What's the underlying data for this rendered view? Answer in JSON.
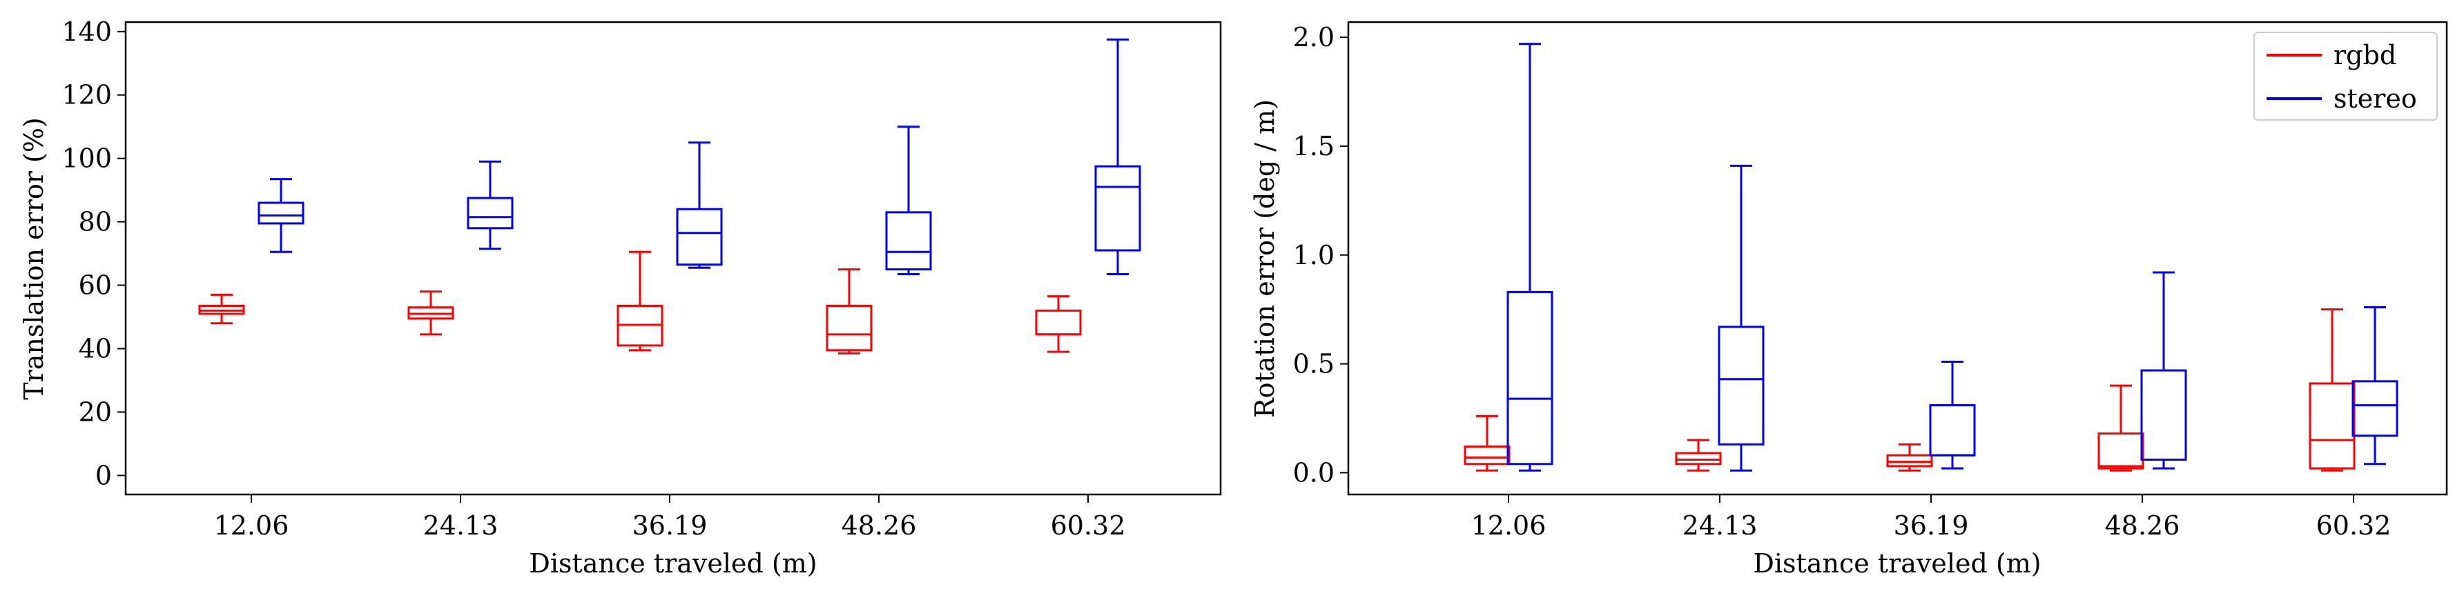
{
  "colors": {
    "rgbd": "#ff0000",
    "stereo": "#0000ff",
    "axes": "#000000",
    "background": "#ffffff"
  },
  "legend": {
    "placement": "top-right",
    "entries": [
      "rgbd",
      "stereo"
    ]
  },
  "chart_data": [
    {
      "type": "box",
      "title": "",
      "xlabel": "Distance traveled (m)",
      "ylabel": "Translation error (%)",
      "categories": [
        "12.06",
        "24.13",
        "36.19",
        "48.26",
        "60.32"
      ],
      "ylim": [
        -6,
        143
      ],
      "yticks": [
        0,
        20,
        40,
        60,
        80,
        100,
        120,
        140
      ],
      "ytick_labels": [
        "0",
        "20",
        "40",
        "60",
        "80",
        "100",
        "120",
        "140"
      ],
      "grid": false,
      "series": [
        {
          "name": "rgbd",
          "boxes": [
            {
              "whislo": 48,
              "q1": 51,
              "med": 52,
              "q3": 53.5,
              "whishi": 57
            },
            {
              "whislo": 44.5,
              "q1": 49.5,
              "med": 51,
              "q3": 53,
              "whishi": 58
            },
            {
              "whislo": 39.5,
              "q1": 41,
              "med": 47.5,
              "q3": 53.5,
              "whishi": 70.5
            },
            {
              "whislo": 38.5,
              "q1": 39.5,
              "med": 44.5,
              "q3": 53.5,
              "whishi": 65
            },
            {
              "whislo": 39,
              "q1": 44.5,
              "med": 44.5,
              "q3": 52,
              "whishi": 56.5
            }
          ]
        },
        {
          "name": "stereo",
          "boxes": [
            {
              "whislo": 70.5,
              "q1": 79.5,
              "med": 82,
              "q3": 86,
              "whishi": 93.5
            },
            {
              "whislo": 71.5,
              "q1": 78,
              "med": 81.5,
              "q3": 87.5,
              "whishi": 99
            },
            {
              "whislo": 65.5,
              "q1": 66.5,
              "med": 76.5,
              "q3": 84,
              "whishi": 105
            },
            {
              "whislo": 63.5,
              "q1": 65,
              "med": 70.5,
              "q3": 83,
              "whishi": 110
            },
            {
              "whislo": 63.5,
              "q1": 71,
              "med": 91,
              "q3": 97.5,
              "whishi": 137.5
            }
          ]
        }
      ]
    },
    {
      "type": "box",
      "title": "",
      "xlabel": "Distance traveled (m)",
      "ylabel": "Rotation error (deg / m)",
      "categories": [
        "12.06",
        "24.13",
        "36.19",
        "48.26",
        "60.32"
      ],
      "ylim": [
        -0.1,
        2.07
      ],
      "yticks": [
        0,
        0.5,
        1,
        1.5,
        2
      ],
      "ytick_labels": [
        "0.0",
        "0.5",
        "1.0",
        "1.5",
        "2.0"
      ],
      "grid": false,
      "series": [
        {
          "name": "rgbd",
          "boxes": [
            {
              "whislo": 0.01,
              "q1": 0.04,
              "med": 0.07,
              "q3": 0.12,
              "whishi": 0.26
            },
            {
              "whislo": 0.01,
              "q1": 0.04,
              "med": 0.06,
              "q3": 0.09,
              "whishi": 0.15
            },
            {
              "whislo": 0.01,
              "q1": 0.03,
              "med": 0.05,
              "q3": 0.08,
              "whishi": 0.13
            },
            {
              "whislo": 0.01,
              "q1": 0.02,
              "med": 0.03,
              "q3": 0.18,
              "whishi": 0.4
            },
            {
              "whislo": 0.01,
              "q1": 0.02,
              "med": 0.15,
              "q3": 0.41,
              "whishi": 0.75
            }
          ]
        },
        {
          "name": "stereo",
          "boxes": [
            {
              "whislo": 0.01,
              "q1": 0.04,
              "med": 0.34,
              "q3": 0.83,
              "whishi": 1.97
            },
            {
              "whislo": 0.01,
              "q1": 0.13,
              "med": 0.43,
              "q3": 0.67,
              "whishi": 1.41
            },
            {
              "whislo": 0.02,
              "q1": 0.08,
              "med": 0.08,
              "q3": 0.31,
              "whishi": 0.51
            },
            {
              "whislo": 0.02,
              "q1": 0.06,
              "med": 0.06,
              "q3": 0.47,
              "whishi": 0.92
            },
            {
              "whislo": 0.04,
              "q1": 0.17,
              "med": 0.31,
              "q3": 0.42,
              "whishi": 0.76
            }
          ]
        }
      ]
    }
  ]
}
